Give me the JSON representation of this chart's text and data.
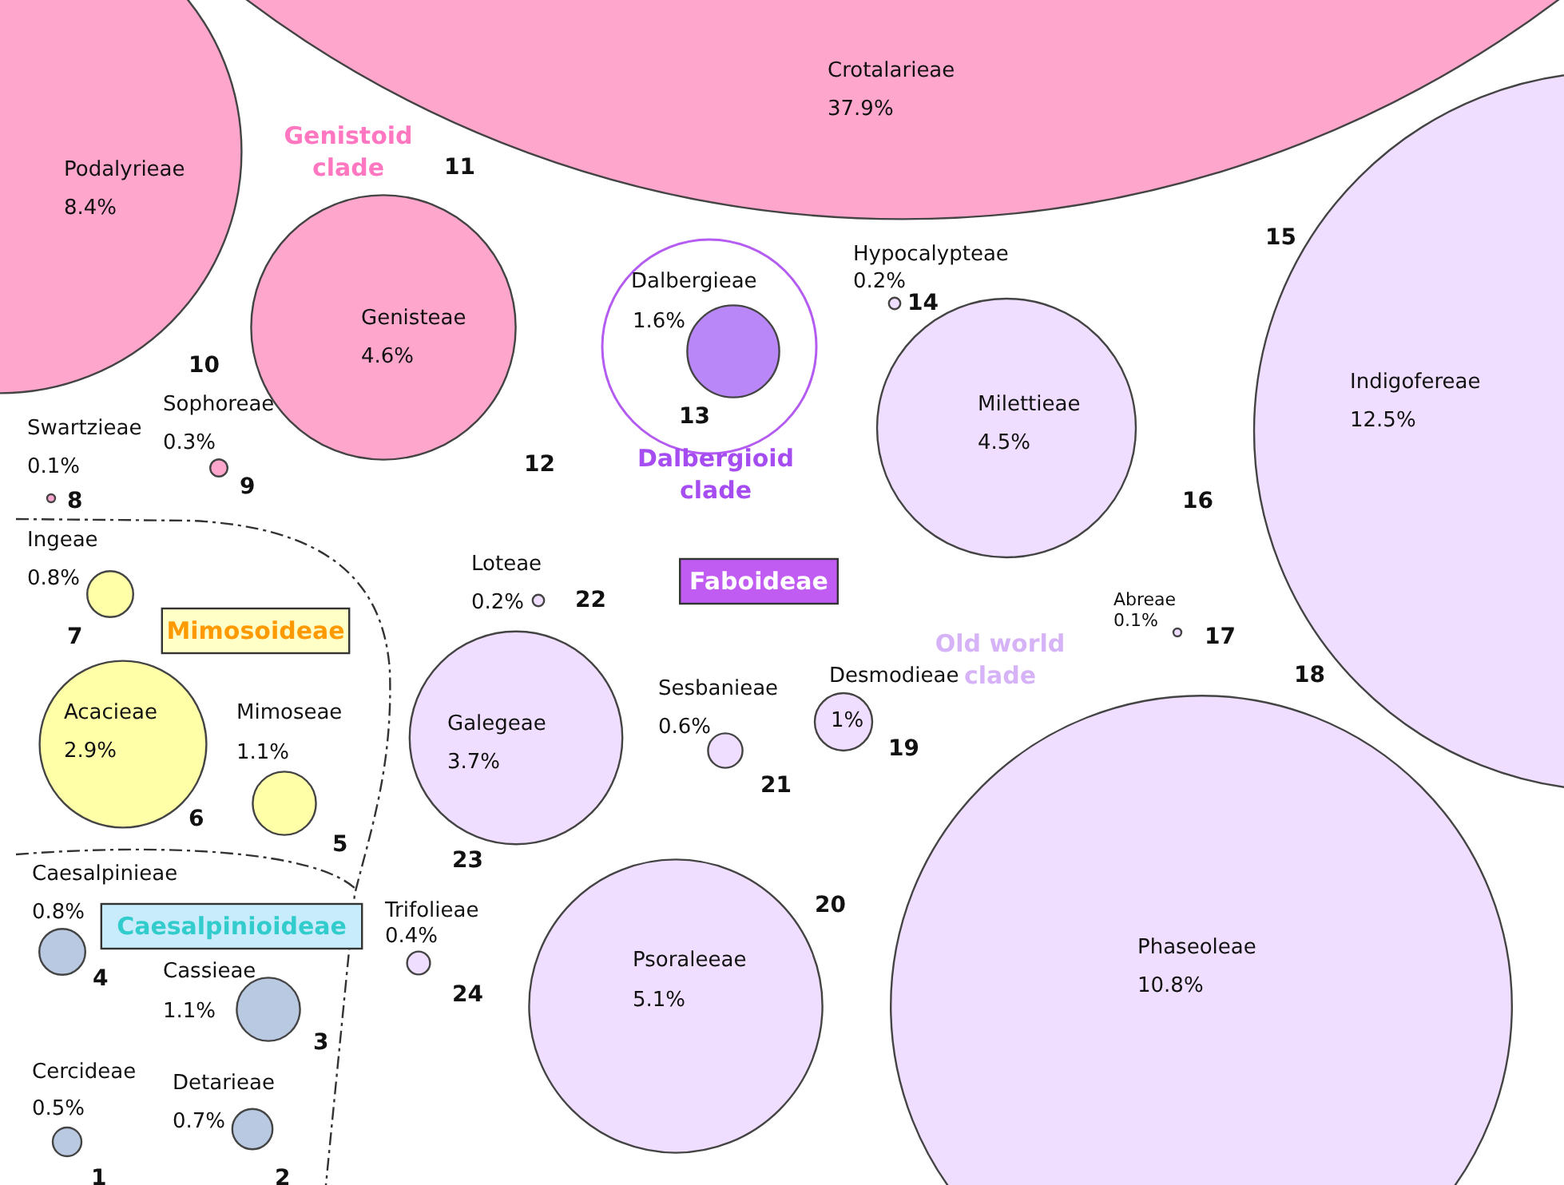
{
  "chart_data": {
    "type": "other",
    "categories": [
      "Cercideae",
      "Detarieae",
      "Cassieae",
      "Caesalpinieae",
      "Mimoseae",
      "Acacieae",
      "Ingeae",
      "Swartzieae",
      "Sophoreae",
      "Podalyrieae",
      "Crotalarieae",
      "Genisteae",
      "Dalbergieae",
      "Hypocalypteae",
      "Indigofereae",
      "Milettieae",
      "Abreae",
      "Phaseoleae",
      "Desmodieae",
      "Psoraleeae",
      "Sesbanieae",
      "Loteae",
      "Galegeae",
      "Trifolieae"
    ],
    "values": [
      0.5,
      0.7,
      1.1,
      0.8,
      1.1,
      2.9,
      0.8,
      0.1,
      0.3,
      8.4,
      37.9,
      4.6,
      1.6,
      0.2,
      12.5,
      4.5,
      0.1,
      10.8,
      1,
      5.1,
      0.6,
      0.2,
      3.7,
      0.4
    ],
    "value_labels": [
      "0.5%",
      "0.7%",
      "1.1%",
      "0.8%",
      "1.1%",
      "2.9%",
      "0.8%",
      "0.1%",
      "0.3%",
      "8.4%",
      "37.9%",
      "4.6%",
      "1.6%",
      "0.2%",
      "12.5%",
      "4.5%",
      "0.1%",
      "10.8%",
      "1%",
      "5.1%",
      "0.6%",
      "0.2%",
      "3.7%",
      "0.4%"
    ],
    "colors": [
      "#b8c9e1",
      "#b8c9e1",
      "#b8c9e1",
      "#b8c9e1",
      "#ffffa8",
      "#ffffa8",
      "#ffffa8",
      "#ffa6cc",
      "#ffa6cc",
      "#ffa6cc",
      "#ffa6cc",
      "#ffa6cc",
      "#b987f7",
      "#efdeff",
      "#efdeff",
      "#efdeff",
      "#efdeff",
      "#efdeff",
      "#efdeff",
      "#efdeff",
      "#efdeff",
      "#efdeff",
      "#efdeff",
      "#efdeff"
    ],
    "annotations": [
      "Genistoid clade",
      "Dalbergioid clade",
      "Old world clade",
      "Faboideae",
      "Mimosoideae",
      "Caesalpinioideae",
      {
        "text": "1",
        "x": "Cercideae"
      },
      {
        "text": "2",
        "x": "Detarieae"
      },
      {
        "text": "3",
        "x": "Cassieae"
      },
      {
        "text": "4",
        "x": "Caesalpinieae"
      },
      {
        "text": "5",
        "x": "Mimoseae"
      },
      {
        "text": "6",
        "x": "Acacieae"
      },
      {
        "text": "7",
        "x": "Ingeae"
      },
      {
        "text": "8",
        "x": "Swartzieae"
      },
      {
        "text": "9",
        "x": "Sophoreae"
      },
      {
        "text": "10",
        "x": "Podalyrieae"
      },
      {
        "text": "11",
        "x": "Crotalarieae"
      },
      {
        "text": "12",
        "x": "Genisteae"
      },
      {
        "text": "13",
        "x": "Dalbergieae"
      },
      {
        "text": "14",
        "x": "Hypocalypteae"
      },
      {
        "text": "15",
        "x": "Indigofereae"
      },
      {
        "text": "16",
        "x": "Milettieae"
      },
      {
        "text": "17",
        "x": "Abreae"
      },
      {
        "text": "18",
        "x": "Phaseoleae"
      },
      {
        "text": "19",
        "x": "Desmodieae"
      },
      {
        "text": "20",
        "x": "Psoraleeae"
      },
      {
        "text": "21",
        "x": "Sesbanieae"
      },
      {
        "text": "22",
        "x": "Loteae"
      },
      {
        "text": "23",
        "x": "Galegeae"
      },
      {
        "text": "24",
        "x": "Trifolieae"
      }
    ]
  }
}
